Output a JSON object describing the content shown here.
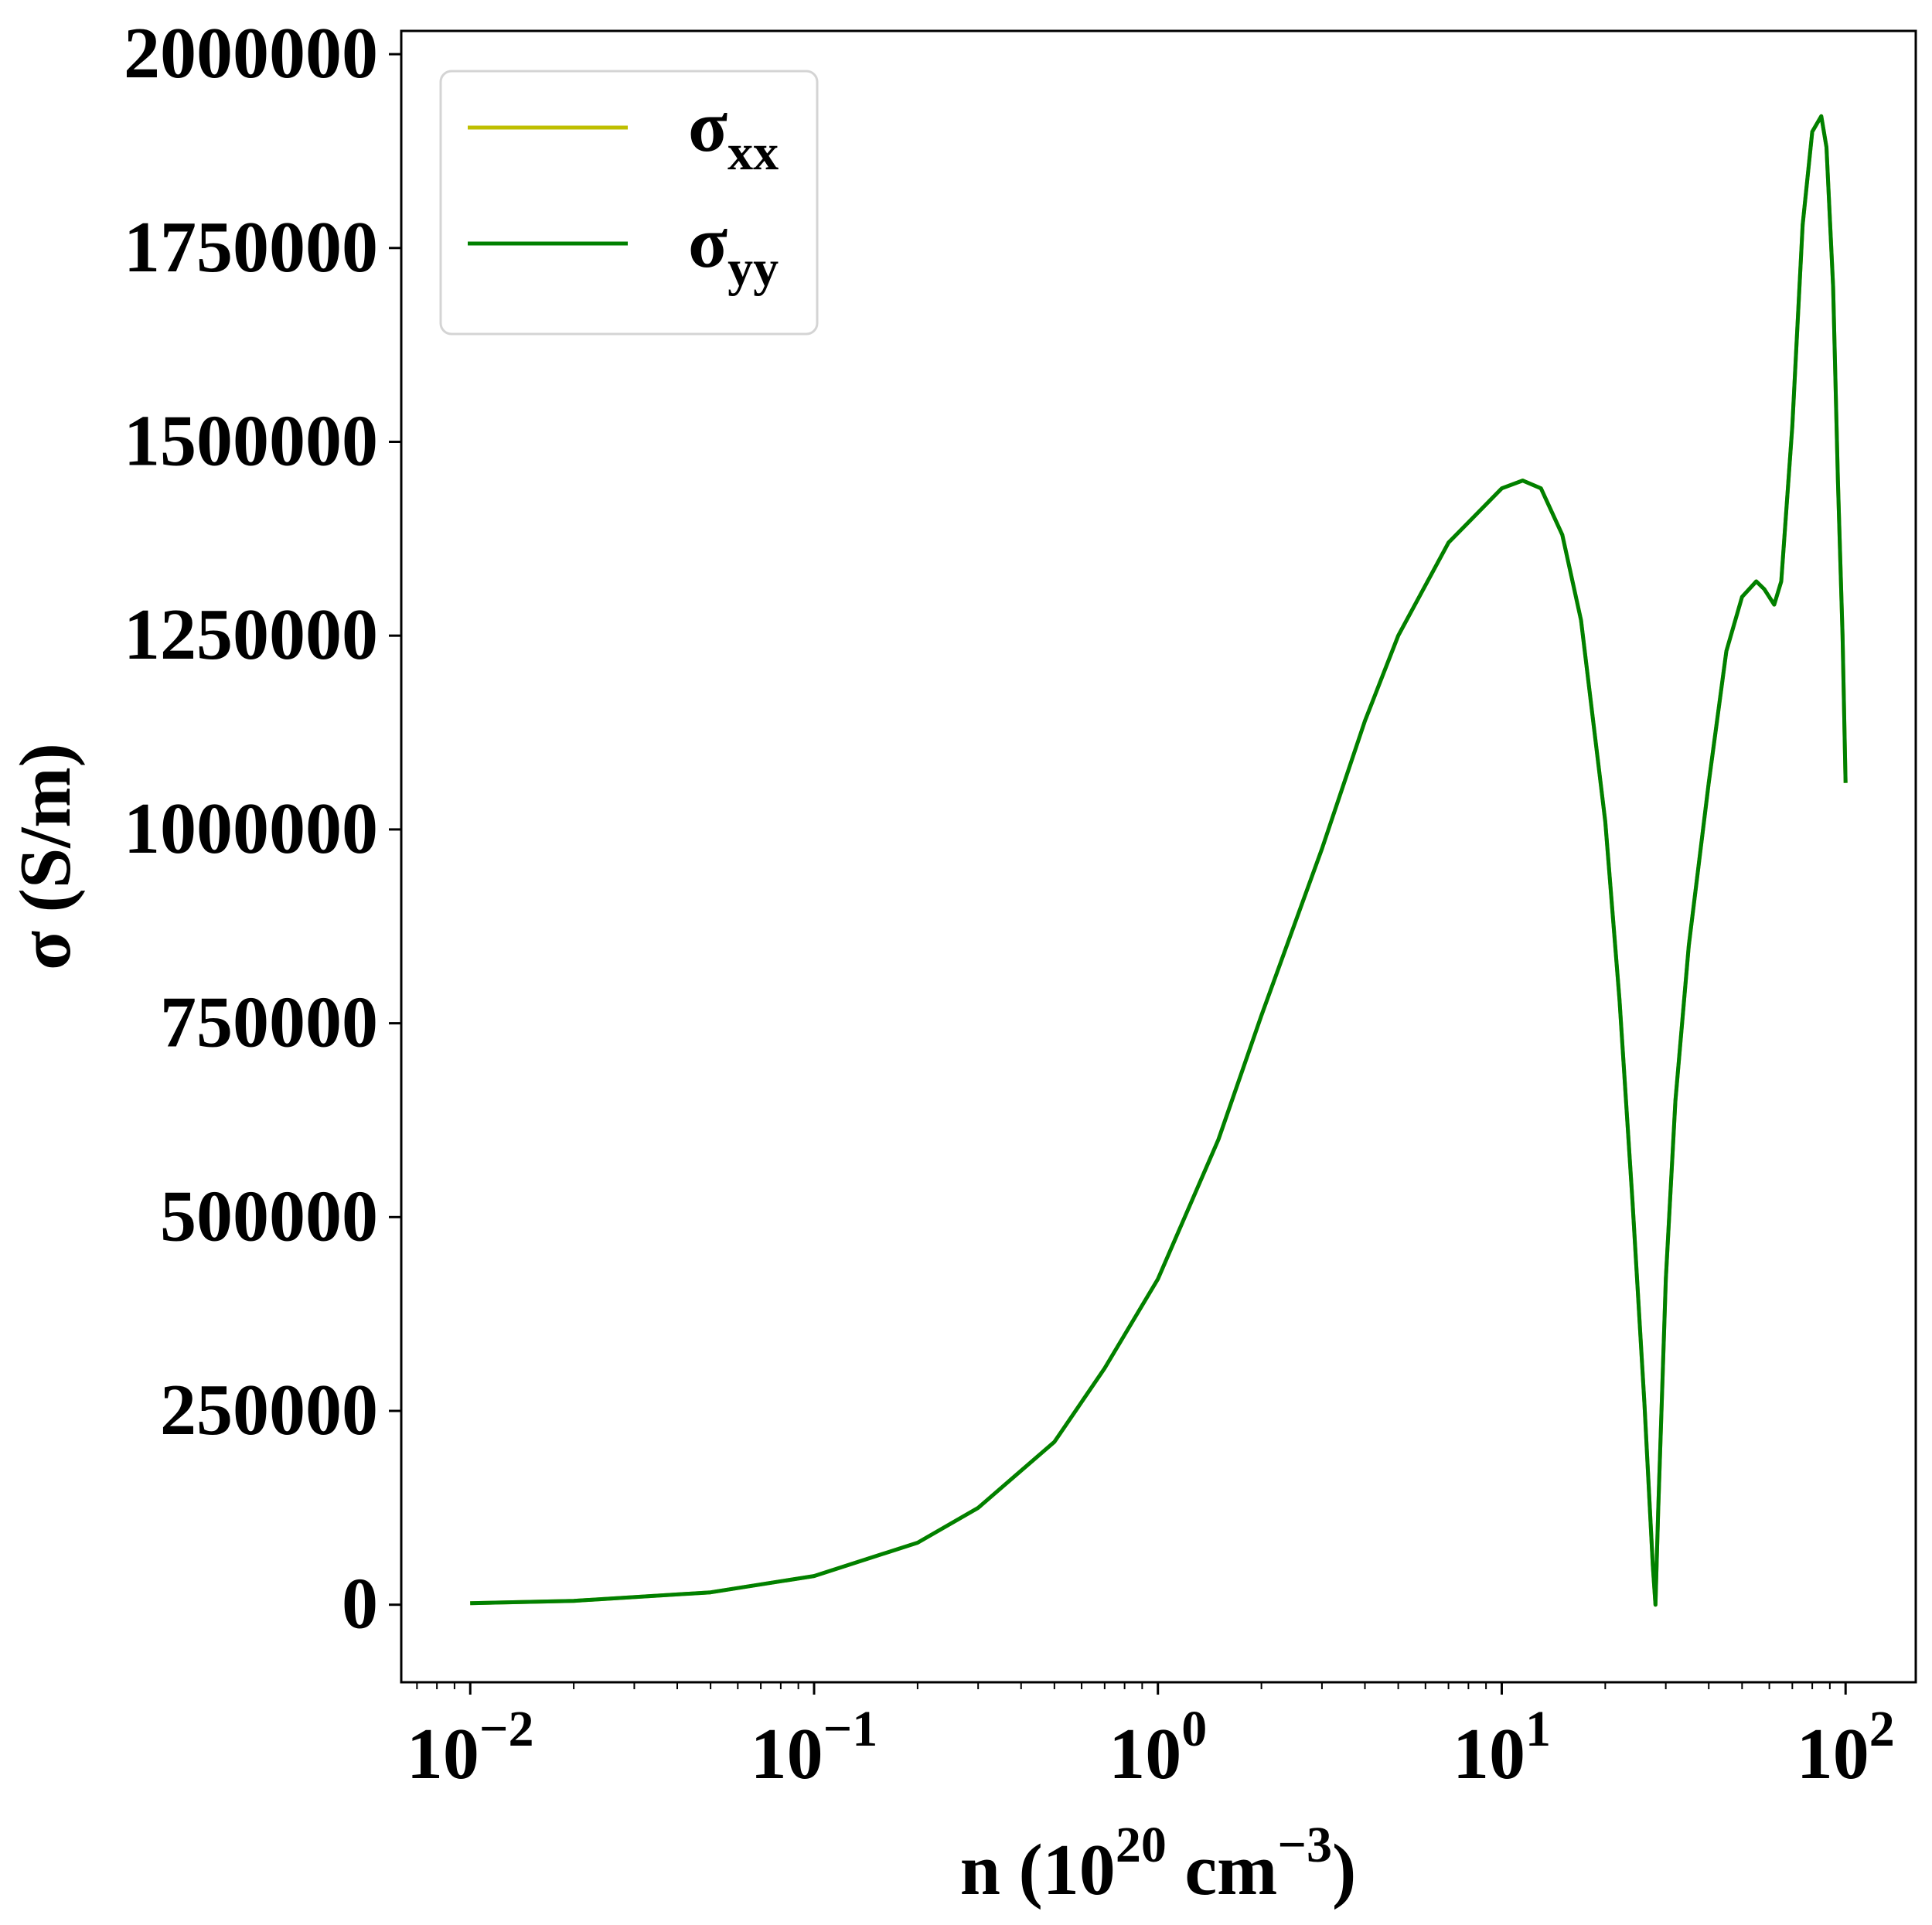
{
  "chart_data": {
    "type": "line",
    "xscale": "log",
    "xlim": [
      0.0063,
      160
    ],
    "ylim": [
      -100000,
      2030000
    ],
    "xlabel": "n (10²⁰ cm⁻³)",
    "ylabel": "σ (S/m)",
    "xlabel_parts": {
      "pre": "n (10",
      "sup1": "20",
      "mid": " cm",
      "sup2": "−3",
      "post": ")"
    },
    "x_ticks": [
      {
        "value": 0.01,
        "base": "10",
        "exp": "−2"
      },
      {
        "value": 0.1,
        "base": "10",
        "exp": "−1"
      },
      {
        "value": 1,
        "base": "10",
        "exp": "0"
      },
      {
        "value": 10,
        "base": "10",
        "exp": "1"
      },
      {
        "value": 100,
        "base": "10",
        "exp": "2"
      }
    ],
    "y_ticks": [
      0,
      250000,
      500000,
      750000,
      1000000,
      1250000,
      1500000,
      1750000,
      2000000
    ],
    "y_tick_labels": [
      "0",
      "250000",
      "500000",
      "750000",
      "1000000",
      "1250000",
      "1500000",
      "1750000",
      "2000000"
    ],
    "grid": false,
    "legend": {
      "position": "top-left",
      "entries": [
        {
          "base": "σ",
          "sub": "xx",
          "color": "#bfbf00"
        },
        {
          "base": "σ",
          "sub": "yy",
          "color": "#008000"
        }
      ]
    },
    "series": [
      {
        "name": "σxx",
        "color": "#bfbf00",
        "x": [
          0.01,
          0.02,
          0.05,
          0.1,
          0.2,
          0.3,
          0.5,
          0.7,
          1,
          1.5,
          2,
          3,
          4,
          5,
          7,
          10,
          11.5,
          13,
          15,
          17,
          20,
          22,
          24,
          26,
          27.5,
          28,
          28.5,
          30,
          32,
          35,
          40,
          45,
          50,
          55,
          58,
          62,
          65,
          70,
          75,
          80,
          85,
          88,
          92,
          95,
          98,
          100
        ],
        "y": [
          2000,
          5000,
          16000,
          37000,
          80000,
          125000,
          210000,
          305000,
          420000,
          600000,
          760000,
          975000,
          1140000,
          1250000,
          1370000,
          1440000,
          1450000,
          1440000,
          1380000,
          1270000,
          1010000,
          780000,
          520000,
          260000,
          50000,
          0,
          120000,
          420000,
          650000,
          850000,
          1060000,
          1230000,
          1300000,
          1320000,
          1310000,
          1290000,
          1320000,
          1520000,
          1780000,
          1900000,
          1920000,
          1880000,
          1700000,
          1450000,
          1250000,
          1060000
        ]
      },
      {
        "name": "σyy",
        "color": "#008000",
        "x": [
          0.01,
          0.02,
          0.05,
          0.1,
          0.2,
          0.3,
          0.5,
          0.7,
          1,
          1.5,
          2,
          3,
          4,
          5,
          7,
          10,
          11.5,
          13,
          15,
          17,
          20,
          22,
          24,
          26,
          27.5,
          28,
          28.5,
          30,
          32,
          35,
          40,
          45,
          50,
          55,
          58,
          62,
          65,
          70,
          75,
          80,
          85,
          88,
          92,
          95,
          98,
          100
        ],
        "y": [
          2000,
          5000,
          16000,
          37000,
          80000,
          125000,
          210000,
          305000,
          420000,
          600000,
          760000,
          975000,
          1140000,
          1250000,
          1370000,
          1440000,
          1450000,
          1440000,
          1380000,
          1270000,
          1010000,
          780000,
          520000,
          260000,
          50000,
          0,
          120000,
          420000,
          650000,
          850000,
          1060000,
          1230000,
          1300000,
          1320000,
          1310000,
          1290000,
          1320000,
          1520000,
          1780000,
          1900000,
          1920000,
          1880000,
          1700000,
          1450000,
          1250000,
          1060000
        ]
      }
    ]
  }
}
